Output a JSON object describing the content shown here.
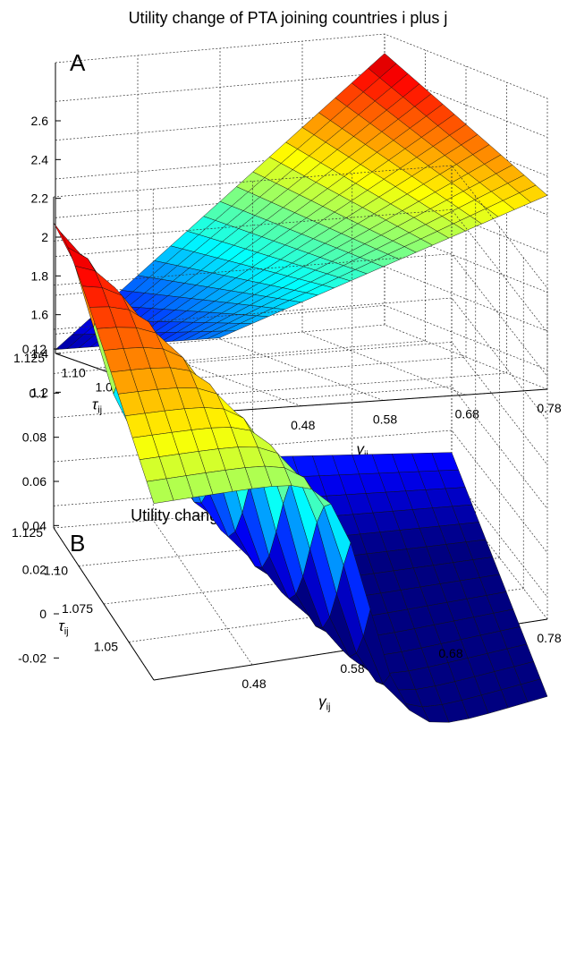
{
  "chart_data": [
    {
      "type": "surface",
      "panel_label": "A",
      "title": "Utility change of PTA joining countries i plus j",
      "xlabel": "γ",
      "xlabel_sub": "ij",
      "ylabel": "τ",
      "ylabel_sub": "ij",
      "x_ticks": [
        "0.48",
        "0.58",
        "0.68",
        "0.78"
      ],
      "y_ticks": [
        "1.05",
        "1.075",
        "1.10",
        "1.125"
      ],
      "z_ticks": [
        "1.2",
        "1.4",
        "1.6",
        "1.8",
        "2",
        "2.2",
        "2.4",
        "2.6"
      ],
      "xlim": [
        0.38,
        0.78
      ],
      "ylim": [
        1.025,
        1.125
      ],
      "zlim": [
        1.1,
        2.6
      ],
      "grid": true,
      "colormap": "jet",
      "corner_values": {
        "gamma_low_tau_low": 1.48,
        "gamma_low_tau_high": 1.12,
        "gamma_high_tau_low": 2.1,
        "gamma_high_tau_high": 2.5
      }
    },
    {
      "type": "surface",
      "panel_label": "B",
      "title": "Utility change of BIT joining countries i plus j",
      "xlabel": "γ",
      "xlabel_sub": "ij",
      "ylabel": "τ",
      "ylabel_sub": "ij",
      "x_ticks": [
        "0.48",
        "0.58",
        "0.68",
        "0.78"
      ],
      "y_ticks": [
        "1.05",
        "1.075",
        "1.10",
        "1.125"
      ],
      "z_ticks": [
        "-0.02",
        "0",
        "0.02",
        "0.04",
        "0.06",
        "0.08",
        "0.1",
        "0.12"
      ],
      "xlim": [
        0.38,
        0.78
      ],
      "ylim": [
        1.025,
        1.125
      ],
      "zlim": [
        -0.03,
        0.12
      ],
      "grid": true,
      "colormap": "jet",
      "corner_values": {
        "gamma_low_tau_low": 0.05,
        "gamma_low_tau_high": 0.12,
        "gamma_high_tau_low": -0.065,
        "gamma_high_tau_high": -0.01
      }
    }
  ]
}
